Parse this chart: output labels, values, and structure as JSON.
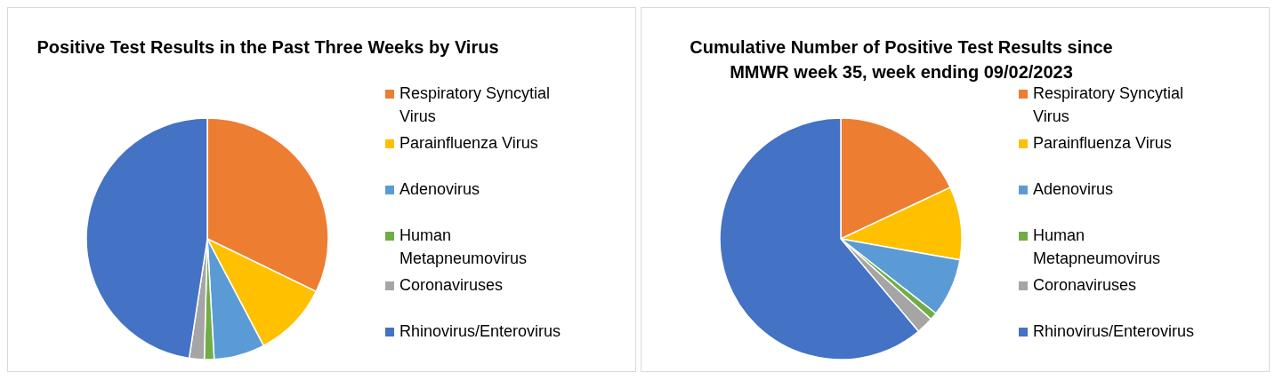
{
  "chart_data": [
    {
      "type": "pie",
      "title": "Positive Test Results in the Past Three Weeks by Virus",
      "categories": [
        "Respiratory Syncytial Virus",
        "Parainfluenza Virus",
        "Adenovirus",
        "Human Metapneumovirus",
        "Coronaviruses",
        "Rhinovirus/Enterovirus"
      ],
      "values": [
        32.2,
        10.1,
        6.8,
        1.3,
        2.0,
        47.6
      ],
      "colors": [
        "#ed7d31",
        "#ffc000",
        "#5b9bd5",
        "#70ad47",
        "#a5a5a5",
        "#4472c4"
      ],
      "legend": "right"
    },
    {
      "type": "pie",
      "title": "Cumulative Number of Positive Test Results since MMWR week 35, week ending 09/02/2023",
      "categories": [
        "Respiratory Syncytial Virus",
        "Parainfluenza Virus",
        "Adenovirus",
        "Human Metapneumovirus",
        "Coronaviruses",
        "Rhinovirus/Enterovirus"
      ],
      "values": [
        18.0,
        9.8,
        7.8,
        1.0,
        2.3,
        61.1
      ],
      "colors": [
        "#ed7d31",
        "#ffc000",
        "#5b9bd5",
        "#70ad47",
        "#a5a5a5",
        "#4472c4"
      ],
      "legend": "right"
    }
  ]
}
